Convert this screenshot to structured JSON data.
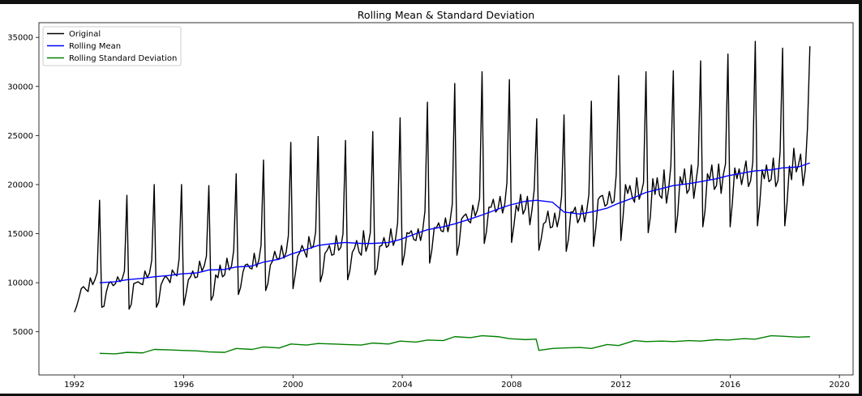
{
  "chart_data": {
    "type": "line",
    "title": "Rolling Mean & Standard Deviation",
    "xlabel": "",
    "ylabel": "",
    "xlim": [
      1990.7,
      2020.5
    ],
    "ylim": [
      600,
      36500
    ],
    "x_ticks": [
      "1992",
      "1996",
      "2000",
      "2004",
      "2008",
      "2012",
      "2016",
      "2020"
    ],
    "y_ticks": [
      "5000",
      "10000",
      "15000",
      "20000",
      "25000",
      "30000",
      "35000"
    ],
    "grid": false,
    "legend_position": "upper-left",
    "series": [
      {
        "name": "Original",
        "color": "#000000",
        "x": [
          1992.0,
          1992.08,
          1992.17,
          1992.25,
          1992.33,
          1992.42,
          1992.5,
          1992.58,
          1992.67,
          1992.75,
          1992.83,
          1992.92,
          1993.0,
          1993.08,
          1993.17,
          1993.25,
          1993.33,
          1993.42,
          1993.5,
          1993.58,
          1993.67,
          1993.75,
          1993.83,
          1993.92,
          1994.0,
          1994.08,
          1994.17,
          1994.25,
          1994.33,
          1994.42,
          1994.5,
          1994.58,
          1994.67,
          1994.75,
          1994.83,
          1994.92,
          1995.0,
          1995.08,
          1995.17,
          1995.25,
          1995.33,
          1995.42,
          1995.5,
          1995.58,
          1995.67,
          1995.75,
          1995.83,
          1995.92,
          1996.0,
          1996.08,
          1996.17,
          1996.25,
          1996.33,
          1996.42,
          1996.5,
          1996.58,
          1996.67,
          1996.75,
          1996.83,
          1996.92,
          1997.0,
          1997.08,
          1997.17,
          1997.25,
          1997.33,
          1997.42,
          1997.5,
          1997.58,
          1997.67,
          1997.75,
          1997.83,
          1997.92,
          1998.0,
          1998.08,
          1998.17,
          1998.25,
          1998.33,
          1998.42,
          1998.5,
          1998.58,
          1998.67,
          1998.75,
          1998.83,
          1998.92,
          1999.0,
          1999.08,
          1999.17,
          1999.25,
          1999.33,
          1999.42,
          1999.5,
          1999.58,
          1999.67,
          1999.75,
          1999.83,
          1999.92,
          2000.0,
          2000.08,
          2000.17,
          2000.25,
          2000.33,
          2000.42,
          2000.5,
          2000.58,
          2000.67,
          2000.75,
          2000.83,
          2000.92,
          2001.0,
          2001.08,
          2001.17,
          2001.25,
          2001.33,
          2001.42,
          2001.5,
          2001.58,
          2001.67,
          2001.75,
          2001.83,
          2001.92,
          2002.0,
          2002.08,
          2002.17,
          2002.25,
          2002.33,
          2002.42,
          2002.5,
          2002.58,
          2002.67,
          2002.75,
          2002.83,
          2002.92,
          2003.0,
          2003.08,
          2003.17,
          2003.25,
          2003.33,
          2003.42,
          2003.5,
          2003.58,
          2003.67,
          2003.75,
          2003.83,
          2003.92,
          2004.0,
          2004.08,
          2004.17,
          2004.25,
          2004.33,
          2004.42,
          2004.5,
          2004.58,
          2004.67,
          2004.75,
          2004.83,
          2004.92,
          2005.0,
          2005.08,
          2005.17,
          2005.25,
          2005.33,
          2005.42,
          2005.5,
          2005.58,
          2005.67,
          2005.75,
          2005.83,
          2005.92,
          2006.0,
          2006.08,
          2006.17,
          2006.25,
          2006.33,
          2006.42,
          2006.5,
          2006.58,
          2006.67,
          2006.75,
          2006.83,
          2006.92,
          2007.0,
          2007.08,
          2007.17,
          2007.25,
          2007.33,
          2007.42,
          2007.5,
          2007.58,
          2007.67,
          2007.75,
          2007.83,
          2007.92,
          2008.0,
          2008.08,
          2008.17,
          2008.25,
          2008.33,
          2008.42,
          2008.5,
          2008.58,
          2008.67,
          2008.75,
          2008.83,
          2008.92,
          2009.0,
          2009.08,
          2009.17,
          2009.25,
          2009.33,
          2009.42,
          2009.5,
          2009.58,
          2009.67,
          2009.75,
          2009.83,
          2009.92,
          2010.0,
          2010.08,
          2010.17,
          2010.25,
          2010.33,
          2010.42,
          2010.5,
          2010.58,
          2010.67,
          2010.75,
          2010.83,
          2010.92,
          2011.0,
          2011.08,
          2011.17,
          2011.25,
          2011.33,
          2011.42,
          2011.5,
          2011.58,
          2011.67,
          2011.75,
          2011.83,
          2011.92,
          2012.0,
          2012.08,
          2012.17,
          2012.25,
          2012.33,
          2012.42,
          2012.5,
          2012.58,
          2012.67,
          2012.75,
          2012.83,
          2012.92,
          2013.0,
          2013.08,
          2013.17,
          2013.25,
          2013.33,
          2013.42,
          2013.5,
          2013.58,
          2013.67,
          2013.75,
          2013.83,
          2013.92,
          2014.0,
          2014.08,
          2014.17,
          2014.25,
          2014.33,
          2014.42,
          2014.5,
          2014.58,
          2014.67,
          2014.75,
          2014.83,
          2014.92,
          2015.0,
          2015.08,
          2015.17,
          2015.25,
          2015.33,
          2015.42,
          2015.5,
          2015.58,
          2015.67,
          2015.75,
          2015.83,
          2015.92,
          2016.0,
          2016.08,
          2016.17,
          2016.25,
          2016.33,
          2016.42,
          2016.5,
          2016.58,
          2016.67,
          2016.75,
          2016.83,
          2016.92,
          2017.0,
          2017.08,
          2017.17,
          2017.25,
          2017.33,
          2017.42,
          2017.5,
          2017.58,
          2017.67,
          2017.75,
          2017.83,
          2017.92,
          2018.0,
          2018.08,
          2018.17,
          2018.25,
          2018.33,
          2018.42,
          2018.5,
          2018.58,
          2018.67,
          2018.75,
          2018.83,
          2018.92
        ],
        "y": [
          7000,
          7600,
          8500,
          9400,
          9600,
          9300,
          9100,
          10500,
          9800,
          10300,
          11000,
          18400,
          7500,
          7600,
          9100,
          9900,
          10100,
          9700,
          9900,
          10600,
          10100,
          10400,
          11200,
          18900,
          7300,
          7800,
          9900,
          10000,
          10100,
          9900,
          9800,
          11200,
          10500,
          11000,
          12300,
          20000,
          7500,
          8000,
          9800,
          10300,
          10700,
          10400,
          10000,
          11300,
          10900,
          10700,
          12400,
          20000,
          7700,
          8800,
          10300,
          10600,
          11200,
          10500,
          10600,
          12200,
          11200,
          11700,
          12700,
          19900,
          8200,
          8700,
          10800,
          10500,
          11800,
          10600,
          10800,
          12500,
          11300,
          11700,
          13300,
          21100,
          8800,
          9500,
          11100,
          11800,
          11900,
          11500,
          11400,
          13000,
          11600,
          12300,
          13800,
          22500,
          9200,
          9900,
          11800,
          12200,
          13200,
          12400,
          12500,
          13800,
          12500,
          13100,
          14800,
          24300,
          9400,
          10800,
          12700,
          13100,
          13800,
          13200,
          12600,
          14700,
          13500,
          13800,
          15200,
          24900,
          10100,
          10900,
          13000,
          13300,
          13800,
          12800,
          12900,
          14800,
          13300,
          13600,
          15000,
          24500,
          10300,
          11200,
          13100,
          13500,
          14300,
          13100,
          12800,
          15300,
          13200,
          13900,
          15100,
          25400,
          10800,
          11400,
          13700,
          13800,
          14600,
          13600,
          13800,
          15500,
          13800,
          14400,
          16100,
          26800,
          11800,
          12900,
          15100,
          15000,
          15300,
          14400,
          14300,
          15500,
          14300,
          15400,
          17300,
          28400,
          12000,
          13300,
          15600,
          15600,
          16100,
          15300,
          15200,
          16600,
          15200,
          16300,
          18000,
          30300,
          12800,
          13900,
          16500,
          16800,
          17000,
          16300,
          16100,
          17900,
          16800,
          17400,
          18600,
          31500,
          14000,
          15200,
          17700,
          17700,
          18500,
          17200,
          17500,
          18800,
          17100,
          18000,
          20200,
          30700,
          14100,
          15700,
          17900,
          17300,
          19000,
          17000,
          17500,
          18800,
          15900,
          17500,
          19500,
          26700,
          13300,
          14400,
          16000,
          16200,
          17300,
          15600,
          15700,
          17100,
          15700,
          16800,
          18800,
          27100,
          13200,
          14400,
          17200,
          17200,
          17700,
          16100,
          16600,
          17900,
          16200,
          17300,
          19000,
          28500,
          13700,
          15500,
          18500,
          18800,
          18900,
          17800,
          18000,
          19300,
          18100,
          18300,
          21000,
          31100,
          14300,
          16700,
          20000,
          19100,
          19900,
          18700,
          18200,
          20700,
          18500,
          19200,
          20200,
          31500,
          15100,
          16700,
          20600,
          19000,
          20700,
          18900,
          18600,
          21500,
          18100,
          19600,
          21900,
          31600,
          15100,
          16900,
          20800,
          20000,
          21600,
          19100,
          19500,
          22000,
          18600,
          20300,
          22000,
          32600,
          15700,
          17300,
          21100,
          20500,
          22000,
          19500,
          19900,
          22100,
          19100,
          21000,
          22100,
          33300,
          15700,
          18100,
          21700,
          20600,
          21600,
          20000,
          21200,
          22400,
          19800,
          20400,
          22300,
          34600,
          15800,
          17900,
          21500,
          20600,
          22000,
          20300,
          20500,
          22700,
          19800,
          20400,
          23400,
          33900,
          15800,
          18000,
          21900,
          20500,
          23700,
          21300,
          22000,
          23100,
          19900,
          21500,
          25700,
          34100
        ],
        "width": 1.4
      },
      {
        "name": "Rolling Mean",
        "color": "#0000ff",
        "x": [
          1992.92,
          1993.5,
          1993.92,
          1994.5,
          1994.92,
          1995.5,
          1995.92,
          1996.5,
          1996.92,
          1997.5,
          1997.92,
          1998.5,
          1998.92,
          1999.5,
          1999.92,
          2000.5,
          2000.92,
          2001.5,
          2001.92,
          2002.5,
          2002.92,
          2003.5,
          2003.92,
          2004.5,
          2004.92,
          2005.5,
          2005.92,
          2006.5,
          2006.92,
          2007.5,
          2007.92,
          2008.5,
          2008.92,
          2009.5,
          2009.92,
          2010.5,
          2010.92,
          2011.5,
          2011.92,
          2012.5,
          2012.92,
          2013.5,
          2013.92,
          2014.5,
          2014.92,
          2015.5,
          2015.92,
          2016.5,
          2016.92,
          2017.5,
          2017.92,
          2018.5,
          2018.92
        ],
        "y": [
          10000,
          10100,
          10300,
          10450,
          10600,
          10750,
          10900,
          11000,
          11300,
          11350,
          11600,
          11700,
          12100,
          12400,
          12900,
          13400,
          13800,
          14000,
          14100,
          14000,
          14000,
          14100,
          14400,
          15000,
          15400,
          15700,
          16000,
          16500,
          16900,
          17500,
          17900,
          18300,
          18400,
          18200,
          17200,
          17000,
          17200,
          17600,
          18100,
          18700,
          19200,
          19600,
          19900,
          20100,
          20300,
          20600,
          20900,
          21200,
          21400,
          21500,
          21700,
          21800,
          22200
        ],
        "width": 1.4
      },
      {
        "name": "Rolling Standard Deviation",
        "color": "#008000",
        "x": [
          1992.92,
          1993.5,
          1993.92,
          1994.5,
          1994.92,
          1995.5,
          1995.92,
          1996.5,
          1996.92,
          1997.5,
          1997.92,
          1998.5,
          1998.92,
          1999.5,
          1999.92,
          2000.5,
          2000.92,
          2001.5,
          2001.92,
          2002.5,
          2002.92,
          2003.5,
          2003.92,
          2004.5,
          2004.92,
          2005.5,
          2005.92,
          2006.5,
          2006.92,
          2007.5,
          2007.92,
          2008.5,
          2008.9,
          2009.0,
          2009.5,
          2009.92,
          2010.5,
          2010.92,
          2011.5,
          2011.92,
          2012.5,
          2012.92,
          2013.5,
          2013.92,
          2014.5,
          2014.92,
          2015.5,
          2015.92,
          2016.5,
          2016.92,
          2017.5,
          2017.92,
          2018.5,
          2018.92
        ],
        "y": [
          2800,
          2750,
          2900,
          2850,
          3200,
          3150,
          3100,
          3050,
          2950,
          2900,
          3300,
          3200,
          3450,
          3350,
          3750,
          3650,
          3800,
          3750,
          3700,
          3650,
          3850,
          3750,
          4050,
          3950,
          4150,
          4100,
          4500,
          4400,
          4600,
          4500,
          4300,
          4200,
          4250,
          3100,
          3300,
          3350,
          3400,
          3300,
          3700,
          3600,
          4100,
          4000,
          4050,
          4000,
          4100,
          4050,
          4200,
          4150,
          4300,
          4250,
          4600,
          4550,
          4450,
          4500
        ],
        "width": 1.4
      }
    ]
  }
}
